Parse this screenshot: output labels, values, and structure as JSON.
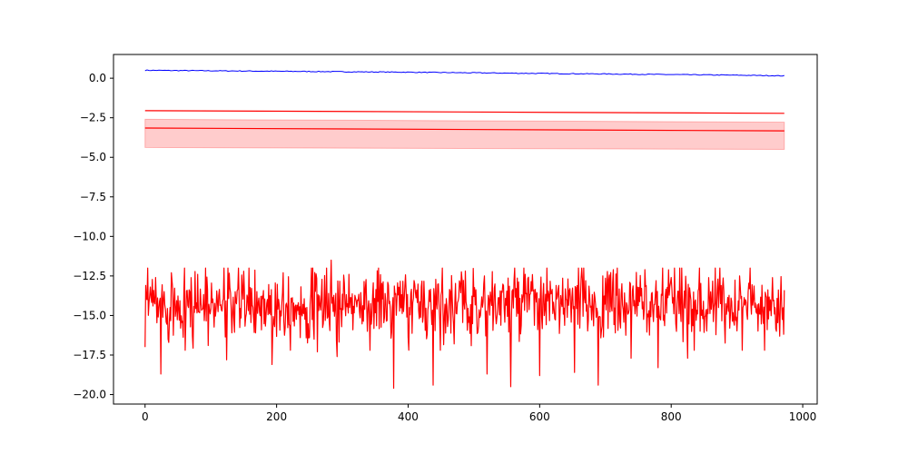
{
  "chart_data": {
    "type": "line",
    "title": "",
    "xlabel": "",
    "ylabel": "",
    "xlim": [
      -48,
      1022
    ],
    "ylim": [
      -20.6,
      1.5
    ],
    "grid": false,
    "legend": "none",
    "x_ticks": [
      0,
      200,
      400,
      600,
      800,
      1000
    ],
    "x_tick_labels": [
      "0",
      "200",
      "400",
      "600",
      "800",
      "1000"
    ],
    "y_ticks": [
      0,
      -2.5,
      -5,
      -7.5,
      -10,
      -12.5,
      -15,
      -17.5,
      -20
    ],
    "y_tick_labels": [
      "0.0",
      "−2.5",
      "−5.0",
      "−7.5",
      "−10.0",
      "−12.5",
      "−15.0",
      "−17.5",
      "−20.0"
    ],
    "series": [
      {
        "role": "blue-line",
        "color": "#0000ff",
        "x": [
          0,
          100,
          200,
          300,
          400,
          500,
          600,
          700,
          800,
          900,
          972
        ],
        "y": [
          0.5,
          0.47,
          0.44,
          0.41,
          0.38,
          0.34,
          0.3,
          0.27,
          0.23,
          0.19,
          0.15
        ]
      },
      {
        "role": "upper-red-line",
        "color": "#ff0000",
        "x": [
          0,
          972
        ],
        "y": [
          -2.05,
          -2.22
        ]
      },
      {
        "role": "mean-red-line",
        "color": "#ff0000",
        "x": [
          0,
          972
        ],
        "y": [
          -3.15,
          -3.33
        ]
      },
      {
        "role": "confidence-band",
        "color": "#ff0000",
        "fill_opacity": 0.2,
        "x": [
          0,
          972
        ],
        "y_upper": [
          -2.6,
          -2.78
        ],
        "y_lower": [
          -4.38,
          -4.5
        ]
      },
      {
        "role": "noisy-red-series",
        "color": "#ff0000",
        "x_start": 0,
        "x_end": 972,
        "mean": -14.3,
        "spread": 1.1,
        "y_min": -19.6,
        "y_max": -11.5,
        "sample": [
          [
            0,
            -17.0
          ],
          [
            3,
            -14.0
          ],
          [
            8,
            -13.2
          ],
          [
            12,
            -14.4
          ],
          [
            16,
            -12.6
          ],
          [
            20,
            -15.1
          ],
          [
            24,
            -18.7
          ],
          [
            28,
            -14.0
          ],
          [
            40,
            -12.3
          ],
          [
            52,
            -15.3
          ],
          [
            60,
            -12.0
          ],
          [
            72,
            -16.3
          ],
          [
            80,
            -12.4
          ],
          [
            96,
            -16.9
          ],
          [
            120,
            -12.0
          ],
          [
            124,
            -17.8
          ],
          [
            150,
            -12.2
          ],
          [
            168,
            -16.1
          ],
          [
            193,
            -18.1
          ],
          [
            210,
            -12.3
          ],
          [
            236,
            -16.4
          ],
          [
            262,
            -17.3
          ],
          [
            276,
            -12.0
          ],
          [
            283,
            -11.5
          ],
          [
            292,
            -17.6
          ],
          [
            310,
            -12.4
          ],
          [
            338,
            -16.0
          ],
          [
            355,
            -12.0
          ],
          [
            378,
            -19.6
          ],
          [
            398,
            -15.1
          ],
          [
            420,
            -13.2
          ],
          [
            438,
            -19.4
          ],
          [
            452,
            -12.0
          ],
          [
            470,
            -16.8
          ],
          [
            500,
            -13.8
          ],
          [
            520,
            -18.7
          ],
          [
            545,
            -13.1
          ],
          [
            556,
            -19.5
          ],
          [
            576,
            -12.0
          ],
          [
            600,
            -18.8
          ],
          [
            625,
            -13.1
          ],
          [
            653,
            -18.6
          ],
          [
            664,
            -12.0
          ],
          [
            689,
            -19.4
          ],
          [
            712,
            -12.1
          ],
          [
            739,
            -17.7
          ],
          [
            760,
            -12.1
          ],
          [
            780,
            -18.3
          ],
          [
            800,
            -12.6
          ],
          [
            825,
            -17.7
          ],
          [
            843,
            -12.0
          ],
          [
            872,
            -14.5
          ],
          [
            904,
            -12.5
          ],
          [
            940,
            -15.5
          ],
          [
            960,
            -16.0
          ],
          [
            972,
            -13.4
          ]
        ]
      }
    ]
  }
}
